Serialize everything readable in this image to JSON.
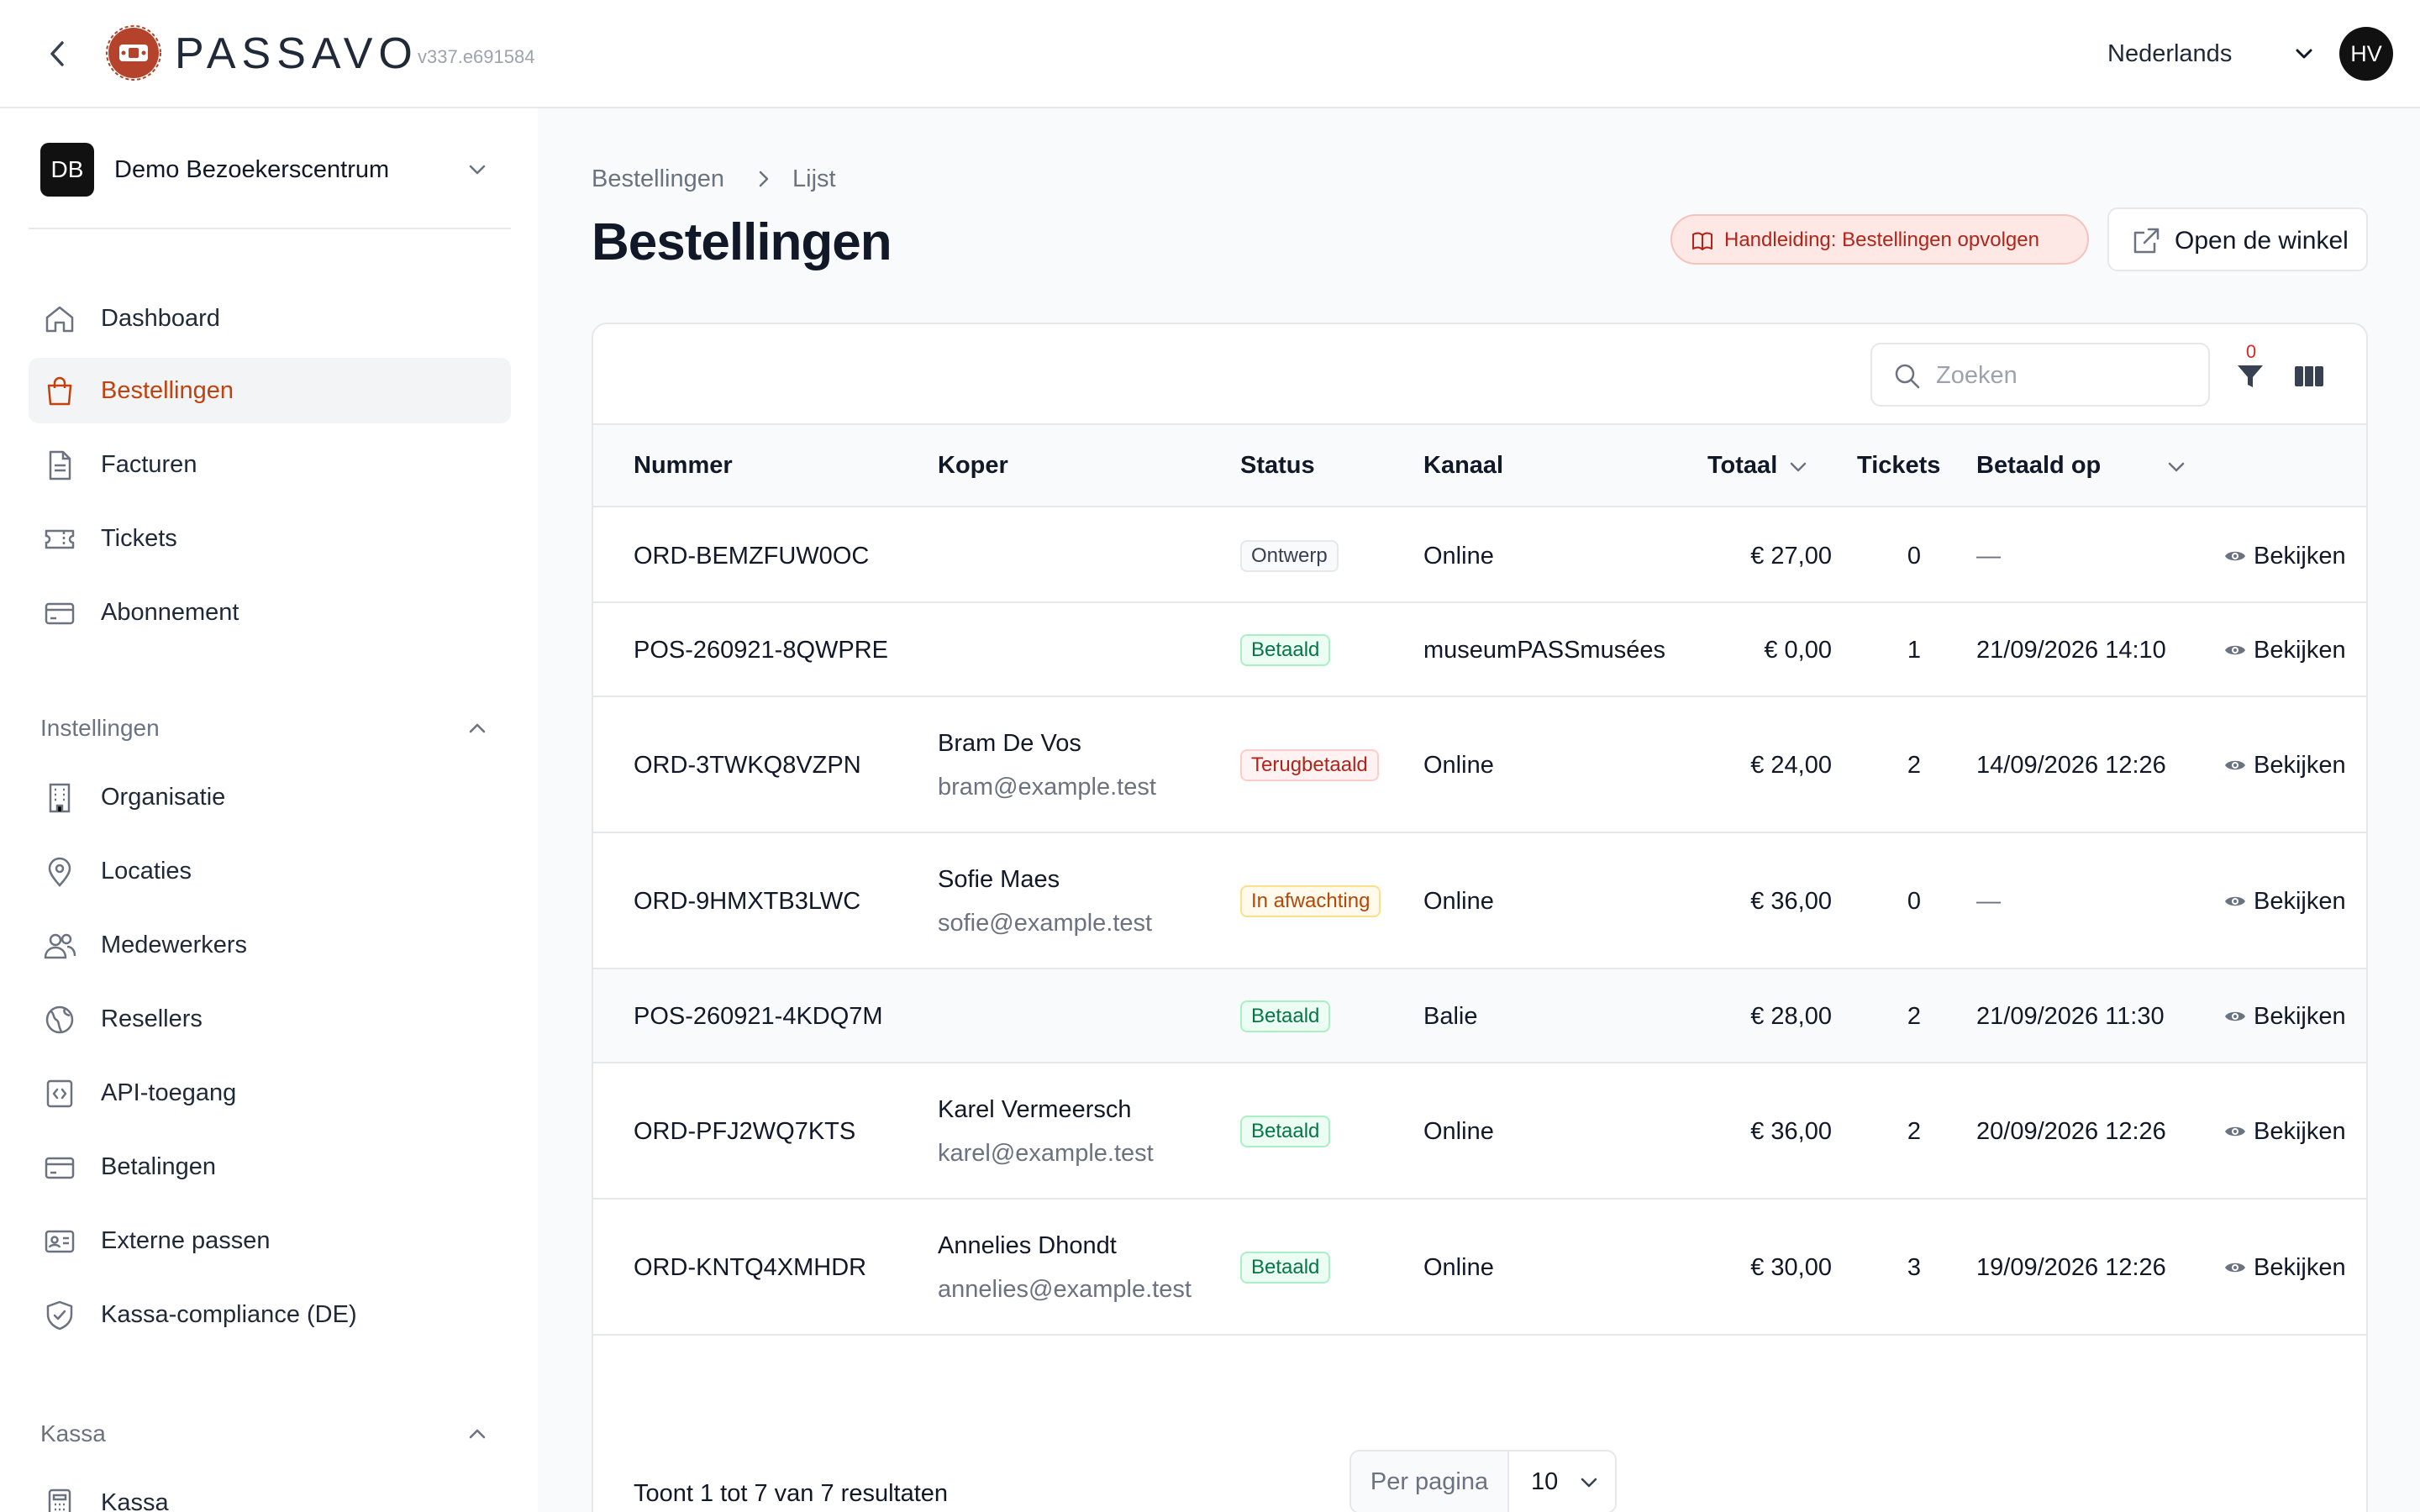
{
  "header": {
    "brand": "PASSAVO",
    "version": "v337.e691584",
    "language": "Nederlands",
    "user_initials": "HV"
  },
  "sidebar": {
    "org_initials": "DB",
    "org_name": "Demo Bezoekerscentrum",
    "main_items": [
      {
        "label": "Dashboard",
        "icon": "home-icon"
      },
      {
        "label": "Bestellingen",
        "icon": "shopping-bag-icon",
        "active": true
      },
      {
        "label": "Facturen",
        "icon": "document-icon"
      },
      {
        "label": "Tickets",
        "icon": "ticket-icon"
      },
      {
        "label": "Abonnement",
        "icon": "credit-card-icon"
      }
    ],
    "settings_label": "Instellingen",
    "settings_items": [
      {
        "label": "Organisatie",
        "icon": "building-icon"
      },
      {
        "label": "Locaties",
        "icon": "map-pin-icon"
      },
      {
        "label": "Medewerkers",
        "icon": "users-icon"
      },
      {
        "label": "Resellers",
        "icon": "globe-icon"
      },
      {
        "label": "API-toegang",
        "icon": "code-icon"
      },
      {
        "label": "Betalingen",
        "icon": "credit-card-icon"
      },
      {
        "label": "Externe passen",
        "icon": "id-card-icon"
      },
      {
        "label": "Kassa-compliance (DE)",
        "icon": "shield-check-icon"
      }
    ],
    "kassa_label": "Kassa",
    "kassa_items": [
      {
        "label": "Kassa",
        "icon": "calculator-icon"
      }
    ]
  },
  "breadcrumb": [
    "Bestellingen",
    "Lijst"
  ],
  "page_title": "Bestellingen",
  "actions": {
    "guide_label": "Handleiding: Bestellingen opvolgen",
    "shop_label": "Open de winkel"
  },
  "toolbar": {
    "search_placeholder": "Zoeken",
    "filter_count": "0"
  },
  "table": {
    "columns": [
      "Nummer",
      "Koper",
      "Status",
      "Kanaal",
      "Totaal",
      "Tickets",
      "Betaald op"
    ],
    "view_label": "Bekijken",
    "rows": [
      {
        "number": "ORD-BEMZFUW0OC",
        "buyer_name": "",
        "buyer_email": "",
        "status": "Ontwerp",
        "status_type": "ontwerp",
        "channel": "Online",
        "total": "€ 27,00",
        "tickets": "0",
        "paid_at": "—"
      },
      {
        "number": "POS-260921-8QWPRE",
        "buyer_name": "",
        "buyer_email": "",
        "status": "Betaald",
        "status_type": "betaald",
        "channel": "museumPASSmusées",
        "total": "€ 0,00",
        "tickets": "1",
        "paid_at": "21/09/2026 14:10"
      },
      {
        "number": "ORD-3TWKQ8VZPN",
        "buyer_name": "Bram De Vos",
        "buyer_email": "bram@example.test",
        "status": "Terugbetaald",
        "status_type": "terug",
        "channel": "Online",
        "total": "€ 24,00",
        "tickets": "2",
        "paid_at": "14/09/2026 12:26"
      },
      {
        "number": "ORD-9HMXTB3LWC",
        "buyer_name": "Sofie Maes",
        "buyer_email": "sofie@example.test",
        "status": "In afwachting",
        "status_type": "wacht",
        "channel": "Online",
        "total": "€ 36,00",
        "tickets": "0",
        "paid_at": "—"
      },
      {
        "number": "POS-260921-4KDQ7M",
        "buyer_name": "",
        "buyer_email": "",
        "status": "Betaald",
        "status_type": "betaald",
        "channel": "Balie",
        "total": "€ 28,00",
        "tickets": "2",
        "paid_at": "21/09/2026 11:30"
      },
      {
        "number": "ORD-PFJ2WQ7KTS",
        "buyer_name": "Karel Vermeersch",
        "buyer_email": "karel@example.test",
        "status": "Betaald",
        "status_type": "betaald",
        "channel": "Online",
        "total": "€ 36,00",
        "tickets": "2",
        "paid_at": "20/09/2026 12:26"
      },
      {
        "number": "ORD-KNTQ4XMHDR",
        "buyer_name": "Annelies Dhondt",
        "buyer_email": "annelies@example.test",
        "status": "Betaald",
        "status_type": "betaald",
        "channel": "Online",
        "total": "€ 30,00",
        "tickets": "3",
        "paid_at": "19/09/2026 12:26"
      }
    ]
  },
  "footer": {
    "results_text": "Toont 1 tot 7 van 7 resultaten",
    "per_page_label": "Per pagina",
    "per_page_value": "10"
  },
  "colors": {
    "accent": "#c2410c",
    "brand_logo": "#b5432b"
  }
}
